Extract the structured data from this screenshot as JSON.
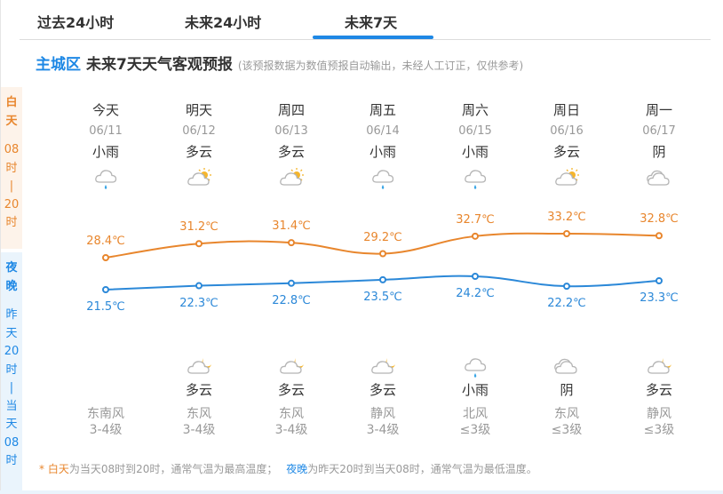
{
  "tabs": [
    {
      "label": "过去24小时",
      "active": false
    },
    {
      "label": "未来24小时",
      "active": false
    },
    {
      "label": "未来7天",
      "active": true
    }
  ],
  "header": {
    "region": "主城区",
    "title": "未来7天天气客观预报",
    "note": "(该预报数据为数值预报自动输出，未经人工订正，仅供参考)"
  },
  "side": {
    "day": {
      "title": [
        "白",
        "天"
      ],
      "range": [
        "08",
        "时",
        "|",
        "20",
        "时"
      ]
    },
    "night": {
      "title": [
        "夜",
        "晚"
      ],
      "range": [
        "昨",
        "天",
        "20",
        "时",
        "|",
        "当",
        "天",
        "08",
        "时"
      ]
    }
  },
  "days": [
    {
      "name": "今天",
      "date": "06/11",
      "day_weather": "小雨",
      "day_icon": "light-rain-icon",
      "night_weather": "",
      "night_icon": "",
      "wind_dir": "东南风",
      "wind_level": "3-4级"
    },
    {
      "name": "明天",
      "date": "06/12",
      "day_weather": "多云",
      "day_icon": "partly-cloudy-day-icon",
      "night_weather": "多云",
      "night_icon": "partly-cloudy-night-icon",
      "wind_dir": "东风",
      "wind_level": "3-4级"
    },
    {
      "name": "周四",
      "date": "06/13",
      "day_weather": "多云",
      "day_icon": "partly-cloudy-day-icon",
      "night_weather": "多云",
      "night_icon": "partly-cloudy-night-icon",
      "wind_dir": "东风",
      "wind_level": "3-4级"
    },
    {
      "name": "周五",
      "date": "06/14",
      "day_weather": "小雨",
      "day_icon": "light-rain-icon",
      "night_weather": "多云",
      "night_icon": "partly-cloudy-night-icon",
      "wind_dir": "静风",
      "wind_level": "3-4级"
    },
    {
      "name": "周六",
      "date": "06/15",
      "day_weather": "小雨",
      "day_icon": "light-rain-icon",
      "night_weather": "小雨",
      "night_icon": "light-rain-icon",
      "wind_dir": "北风",
      "wind_level": "≤3级"
    },
    {
      "name": "周日",
      "date": "06/16",
      "day_weather": "多云",
      "day_icon": "partly-cloudy-day-icon",
      "night_weather": "阴",
      "night_icon": "overcast-icon",
      "wind_dir": "东风",
      "wind_level": "≤3级"
    },
    {
      "name": "周一",
      "date": "06/17",
      "day_weather": "阴",
      "day_icon": "overcast-icon",
      "night_weather": "多云",
      "night_icon": "partly-cloudy-night-icon",
      "wind_dir": "静风",
      "wind_level": "≤3级"
    }
  ],
  "chart_data": {
    "type": "line",
    "title": "未来7天天气客观预报",
    "categories": [
      "今天 06/11",
      "明天 06/12",
      "周四 06/13",
      "周五 06/14",
      "周六 06/15",
      "周日 06/16",
      "周一 06/17"
    ],
    "series": [
      {
        "name": "白天最高温度",
        "color": "#e8862d",
        "values": [
          28.4,
          31.2,
          31.4,
          29.2,
          32.7,
          33.2,
          32.8
        ],
        "labels": [
          "28.4℃",
          "31.2℃",
          "31.4℃",
          "29.2℃",
          "32.7℃",
          "33.2℃",
          "32.8℃"
        ]
      },
      {
        "name": "夜晚最低温度",
        "color": "#2b88d8",
        "values": [
          21.5,
          22.3,
          22.8,
          23.5,
          24.2,
          22.2,
          23.3
        ],
        "labels": [
          "21.5℃",
          "22.3℃",
          "22.8℃",
          "23.5℃",
          "24.2℃",
          "22.2℃",
          "23.3℃"
        ]
      }
    ],
    "xlabel": "",
    "ylabel": "",
    "grid": false,
    "legend": "none"
  },
  "footnote": {
    "star": "* ",
    "day_label": "白天",
    "day_text": "为当天08时到20时，通常气温为最高温度；",
    "night_label": "夜晚",
    "night_text": "为昨天20时到当天08时，通常气温为最低温度。"
  },
  "colors": {
    "accent": "#1e88e5",
    "day": "#e8862d",
    "night": "#2b88d8",
    "day_bg": "#fdf3ea",
    "night_bg": "#eaf4fc"
  }
}
